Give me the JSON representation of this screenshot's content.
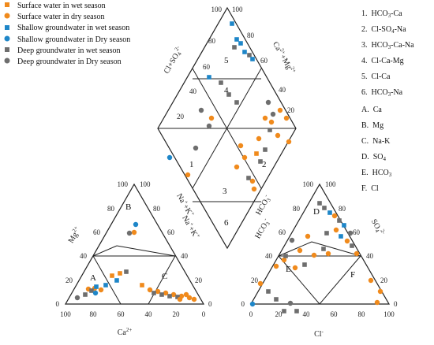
{
  "colors": {
    "orange": "#f08a1c",
    "blue": "#1e86c8",
    "gray": "#6e6e6e",
    "line": "#222222"
  },
  "legend": [
    {
      "label": "Surface water in wet season",
      "marker": "square",
      "color": "orange"
    },
    {
      "label": "Surface water in dry season",
      "marker": "circle",
      "color": "orange"
    },
    {
      "label": "Shallow groundwater in wet season",
      "marker": "square",
      "color": "blue"
    },
    {
      "label": "Shallow groundwater in Dry season",
      "marker": "circle",
      "color": "blue"
    },
    {
      "label": "Deep groundwater in wet season",
      "marker": "square",
      "color": "gray"
    },
    {
      "label": "Deep groundwater in Dry season",
      "marker": "circle",
      "color": "gray"
    }
  ],
  "hydrochemical_types": {
    "numbered": [
      {
        "num": "1.",
        "text": "HCO",
        "sub": "3",
        "rest": "-Ca"
      },
      {
        "num": "2.",
        "text": "Cl-SO",
        "sub": "4",
        "rest": "-Na"
      },
      {
        "num": "3.",
        "text": "HCO",
        "sub": "3",
        "rest": "-Ca-Na"
      },
      {
        "num": "4.",
        "text": "Cl-Ca-Mg",
        "sub": "",
        "rest": ""
      },
      {
        "num": "5.",
        "text": "Cl-Ca",
        "sub": "",
        "rest": ""
      },
      {
        "num": "6.",
        "text": "HCO",
        "sub": "3",
        "rest": "-Na"
      }
    ],
    "lettered": [
      {
        "letter": "A.",
        "text": "Ca",
        "sub": ""
      },
      {
        "letter": "B.",
        "text": "Mg",
        "sub": ""
      },
      {
        "letter": "C.",
        "text": "Na-K",
        "sub": ""
      },
      {
        "letter": "D.",
        "text": "SO",
        "sub": "4"
      },
      {
        "letter": "E.",
        "text": "HCO",
        "sub": "3"
      },
      {
        "letter": "F.",
        "text": "Cl",
        "sub": ""
      }
    ]
  },
  "cation_triangle": {
    "axis_bottom_label": "Ca",
    "axis_bottom_sup": "2+",
    "axis_left_label": "Mg",
    "axis_left_sup": "2+",
    "axis_right_label": "Na",
    "axis_right_rest": "+K",
    "axis_right_sup": "+",
    "bottom_ticks": [
      "100",
      "80",
      "60",
      "40",
      "20",
      "0"
    ],
    "left_ticks": [
      "0",
      "20",
      "40",
      "60",
      "80",
      "100"
    ],
    "right_ticks": [
      "0",
      "20",
      "40",
      "60",
      "80",
      "100"
    ],
    "zones": [
      "A",
      "B",
      "C"
    ]
  },
  "anion_triangle": {
    "axis_bottom_label": "Cl",
    "axis_bottom_sup": "-",
    "axis_left_label": "HCO",
    "axis_left_sub": "3",
    "axis_left_sup": "-",
    "axis_right_label": "SO",
    "axis_right_sub": "4",
    "axis_right_sup": "2-",
    "bottom_ticks": [
      "0",
      "20",
      "40",
      "60",
      "80",
      "100"
    ],
    "left_ticks": [
      "100",
      "80",
      "60",
      "40",
      "20",
      "0"
    ],
    "right_ticks": [
      "100",
      "80",
      "60",
      "40",
      "20",
      "0"
    ],
    "zones": [
      "D",
      "E",
      "F"
    ]
  },
  "diamond": {
    "left_label": "Cl",
    "left_rest": "+SO",
    "left_sub": "4",
    "left_sup": "2-",
    "right_label": "Ca",
    "right_sup": "2+",
    "right_rest": "+Mg",
    "right_sup2": "2+",
    "left_ticks": [
      "20",
      "40",
      "60",
      "80",
      "100"
    ],
    "right_ticks": [
      "20",
      "40",
      "60",
      "80",
      "100"
    ],
    "zones": [
      "1",
      "2",
      "3",
      "4",
      "5",
      "6"
    ]
  }
}
